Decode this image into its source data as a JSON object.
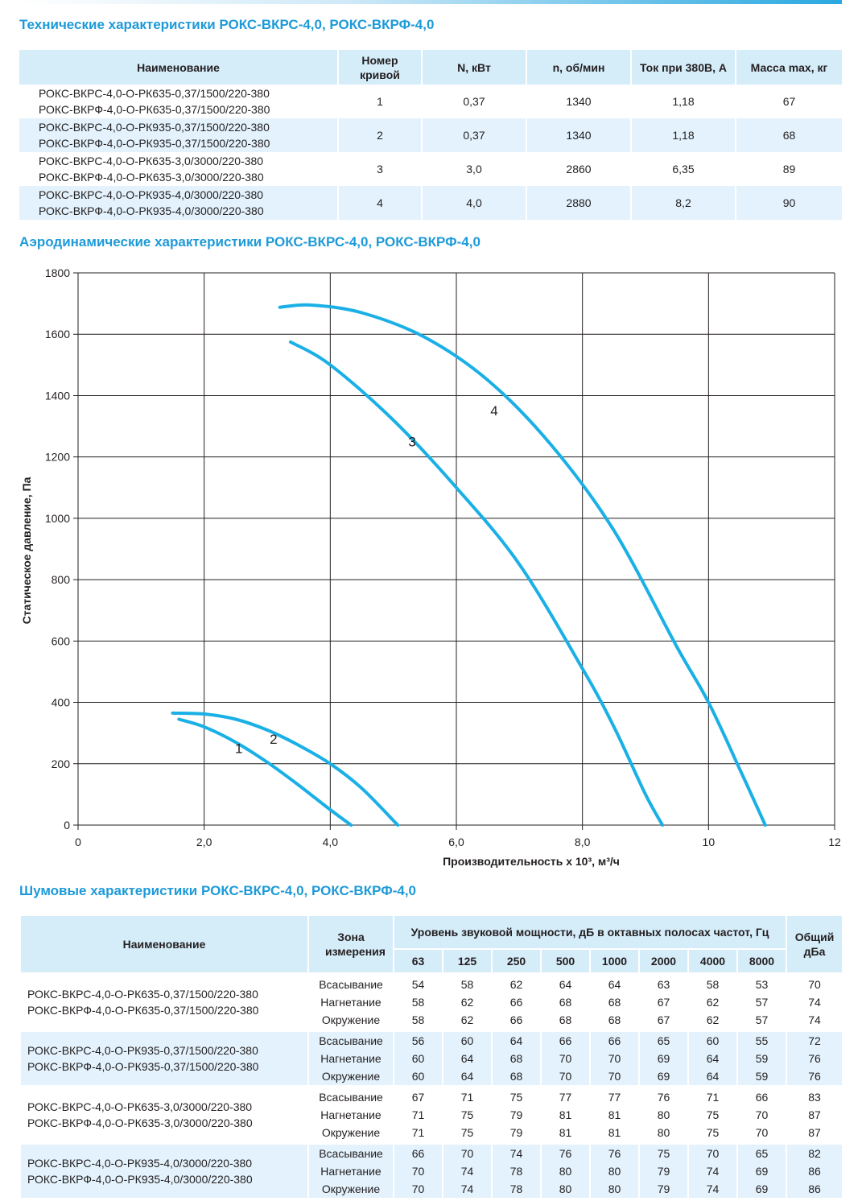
{
  "sections": {
    "spec_title": "Технические характеристики РОКС-ВКРС-4,0, РОКС-ВКРФ-4,0",
    "aero_title": "Аэродинамические характеристики РОКС-ВКРС-4,0, РОКС-ВКРФ-4,0",
    "noise_title": "Шумовые характеристики РОКС-ВКРС-4,0, РОКС-ВКРФ-4,0"
  },
  "spec_table": {
    "headers": [
      "Наименование",
      "Номер кривой",
      "N, кВт",
      "n, об/мин",
      "Ток при 380В, А",
      "Масса max, кг"
    ],
    "rows": [
      {
        "name": [
          "РОКС-ВКРС-4,0-О-РК635-0,37/1500/220-380",
          "РОКС-ВКРФ-4,0-О-РК635-0,37/1500/220-380"
        ],
        "curve": "1",
        "power": "0,37",
        "rpm": "1340",
        "current": "1,18",
        "mass": "67"
      },
      {
        "name": [
          "РОКС-ВКРС-4,0-О-РК935-0,37/1500/220-380",
          "РОКС-ВКРФ-4,0-О-РК935-0,37/1500/220-380"
        ],
        "curve": "2",
        "power": "0,37",
        "rpm": "1340",
        "current": "1,18",
        "mass": "68"
      },
      {
        "name": [
          "РОКС-ВКРС-4,0-О-РК635-3,0/3000/220-380",
          "РОКС-ВКРФ-4,0-О-РК635-3,0/3000/220-380"
        ],
        "curve": "3",
        "power": "3,0",
        "rpm": "2860",
        "current": "6,35",
        "mass": "89"
      },
      {
        "name": [
          "РОКС-ВКРС-4,0-О-РК935-4,0/3000/220-380",
          "РОКС-ВКРФ-4,0-О-РК935-4,0/3000/220-380"
        ],
        "curve": "4",
        "power": "4,0",
        "rpm": "2880",
        "current": "8,2",
        "mass": "90"
      }
    ]
  },
  "chart_data": {
    "type": "line",
    "title": "",
    "xlabel": "Производительность х 10³, м³/ч",
    "ylabel": "Статическое давление, Па",
    "xlim": [
      0,
      12
    ],
    "ylim": [
      0,
      1800
    ],
    "x_ticks": [
      "0",
      "2,0",
      "4,0",
      "6,0",
      "8,0",
      "10",
      "12"
    ],
    "y_ticks": [
      "0",
      "200",
      "400",
      "600",
      "800",
      "1000",
      "1200",
      "1400",
      "1600",
      "1800"
    ],
    "grid": true,
    "line_color": "#1ab0e6",
    "series": [
      {
        "name": "1",
        "x": [
          1.6,
          2.0,
          2.5,
          3.0,
          3.5,
          4.0,
          4.33
        ],
        "y": [
          345,
          320,
          270,
          205,
          130,
          50,
          0
        ]
      },
      {
        "name": "2",
        "x": [
          1.5,
          2.0,
          2.5,
          3.0,
          3.5,
          4.0,
          4.5,
          5.07
        ],
        "y": [
          365,
          362,
          345,
          310,
          260,
          200,
          120,
          0
        ]
      },
      {
        "name": "3",
        "x": [
          3.37,
          4.0,
          5.0,
          6.0,
          7.0,
          8.0,
          8.5,
          9.0,
          9.27
        ],
        "y": [
          1575,
          1500,
          1320,
          1100,
          850,
          510,
          320,
          100,
          0
        ]
      },
      {
        "name": "4",
        "x": [
          3.2,
          3.7,
          4.5,
          5.5,
          6.5,
          7.5,
          8.5,
          9.5,
          10.0,
          10.5,
          10.9
        ],
        "y": [
          1688,
          1695,
          1670,
          1590,
          1450,
          1240,
          960,
          580,
          400,
          180,
          0
        ]
      }
    ],
    "curve_labels": [
      {
        "text": "1",
        "x": 2.55,
        "y": 235
      },
      {
        "text": "2",
        "x": 3.1,
        "y": 265
      },
      {
        "text": "3",
        "x": 5.3,
        "y": 1235
      },
      {
        "text": "4",
        "x": 6.6,
        "y": 1335
      }
    ]
  },
  "noise_table": {
    "header_name": "Наименование",
    "header_zone": "Зона измерения",
    "header_level": "Уровень звуковой мощности, дБ в октавных полосах частот, Гц",
    "header_total": "Общий дБа",
    "freqs": [
      "63",
      "125",
      "250",
      "500",
      "1000",
      "2000",
      "4000",
      "8000"
    ],
    "groups": [
      {
        "name": [
          "РОКС-ВКРС-4,0-О-РК635-0,37/1500/220-380",
          "РОКС-ВКРФ-4,0-О-РК635-0,37/1500/220-380"
        ],
        "rows": [
          {
            "zone": "Всасывание",
            "vals": [
              "54",
              "58",
              "62",
              "64",
              "64",
              "63",
              "58",
              "53"
            ],
            "total": "70"
          },
          {
            "zone": "Нагнетание",
            "vals": [
              "58",
              "62",
              "66",
              "68",
              "68",
              "67",
              "62",
              "57"
            ],
            "total": "74"
          },
          {
            "zone": "Окружение",
            "vals": [
              "58",
              "62",
              "66",
              "68",
              "68",
              "67",
              "62",
              "57"
            ],
            "total": "74"
          }
        ]
      },
      {
        "name": [
          "РОКС-ВКРС-4,0-О-РК935-0,37/1500/220-380",
          "РОКС-ВКРФ-4,0-О-РК935-0,37/1500/220-380"
        ],
        "rows": [
          {
            "zone": "Всасывание",
            "vals": [
              "56",
              "60",
              "64",
              "66",
              "66",
              "65",
              "60",
              "55"
            ],
            "total": "72"
          },
          {
            "zone": "Нагнетание",
            "vals": [
              "60",
              "64",
              "68",
              "70",
              "70",
              "69",
              "64",
              "59"
            ],
            "total": "76"
          },
          {
            "zone": "Окружение",
            "vals": [
              "60",
              "64",
              "68",
              "70",
              "70",
              "69",
              "64",
              "59"
            ],
            "total": "76"
          }
        ]
      },
      {
        "name": [
          "РОКС-ВКРС-4,0-О-РК635-3,0/3000/220-380",
          "РОКС-ВКРФ-4,0-О-РК635-3,0/3000/220-380"
        ],
        "rows": [
          {
            "zone": "Всасывание",
            "vals": [
              "67",
              "71",
              "75",
              "77",
              "77",
              "76",
              "71",
              "66"
            ],
            "total": "83"
          },
          {
            "zone": "Нагнетание",
            "vals": [
              "71",
              "75",
              "79",
              "81",
              "81",
              "80",
              "75",
              "70"
            ],
            "total": "87"
          },
          {
            "zone": "Окружение",
            "vals": [
              "71",
              "75",
              "79",
              "81",
              "81",
              "80",
              "75",
              "70"
            ],
            "total": "87"
          }
        ]
      },
      {
        "name": [
          "РОКС-ВКРС-4,0-О-РК935-4,0/3000/220-380",
          "РОКС-ВКРФ-4,0-О-РК935-4,0/3000/220-380"
        ],
        "rows": [
          {
            "zone": "Всасывание",
            "vals": [
              "66",
              "70",
              "74",
              "76",
              "76",
              "75",
              "70",
              "65"
            ],
            "total": "82"
          },
          {
            "zone": "Нагнетание",
            "vals": [
              "70",
              "74",
              "78",
              "80",
              "80",
              "79",
              "74",
              "69"
            ],
            "total": "86"
          },
          {
            "zone": "Окружение",
            "vals": [
              "70",
              "74",
              "78",
              "80",
              "80",
              "79",
              "74",
              "69"
            ],
            "total": "86"
          }
        ]
      }
    ]
  }
}
